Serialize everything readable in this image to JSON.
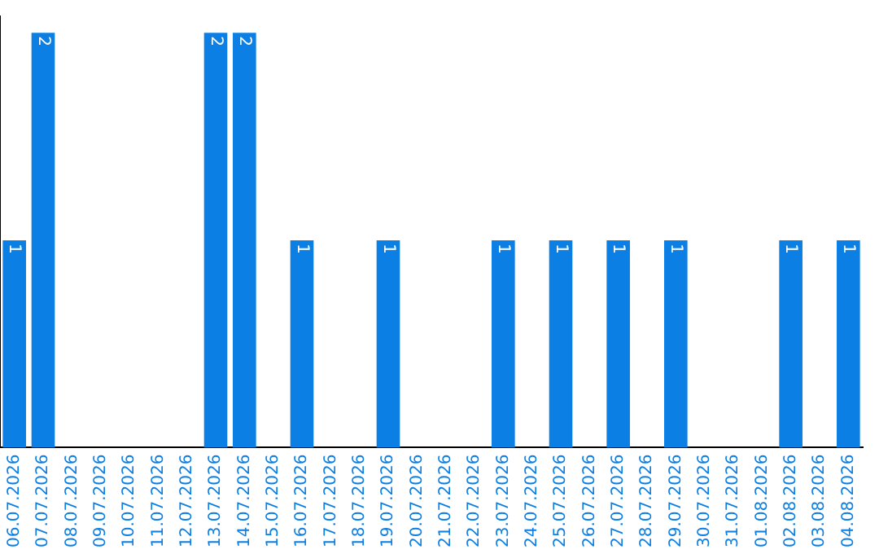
{
  "chart_data": {
    "type": "bar",
    "categories": [
      "06.07.2026",
      "07.07.2026",
      "08.07.2026",
      "09.07.2026",
      "10.07.2026",
      "11.07.2026",
      "12.07.2026",
      "13.07.2026",
      "14.07.2026",
      "15.07.2026",
      "16.07.2026",
      "17.07.2026",
      "18.07.2026",
      "19.07.2026",
      "20.07.2026",
      "21.07.2026",
      "22.07.2026",
      "23.07.2026",
      "24.07.2026",
      "25.07.2026",
      "26.07.2026",
      "27.07.2026",
      "28.07.2026",
      "29.07.2026",
      "30.07.2026",
      "31.07.2026",
      "01.08.2026",
      "02.08.2026",
      "03.08.2026",
      "04.08.2026"
    ],
    "values": [
      1,
      2,
      0,
      0,
      0,
      0,
      0,
      2,
      2,
      0,
      1,
      0,
      0,
      1,
      0,
      0,
      0,
      1,
      0,
      1,
      0,
      1,
      0,
      1,
      0,
      0,
      0,
      1,
      0,
      1
    ],
    "value_labels": [
      "1",
      "2",
      null,
      null,
      null,
      null,
      null,
      "2",
      "2",
      null,
      "1",
      null,
      null,
      "1",
      null,
      null,
      null,
      "1",
      null,
      "1",
      null,
      "1",
      null,
      "1",
      null,
      null,
      null,
      "1",
      null,
      "1"
    ],
    "color": "#0b7fe4",
    "grid": false,
    "legend": false,
    "tick_labels": "x"
  }
}
